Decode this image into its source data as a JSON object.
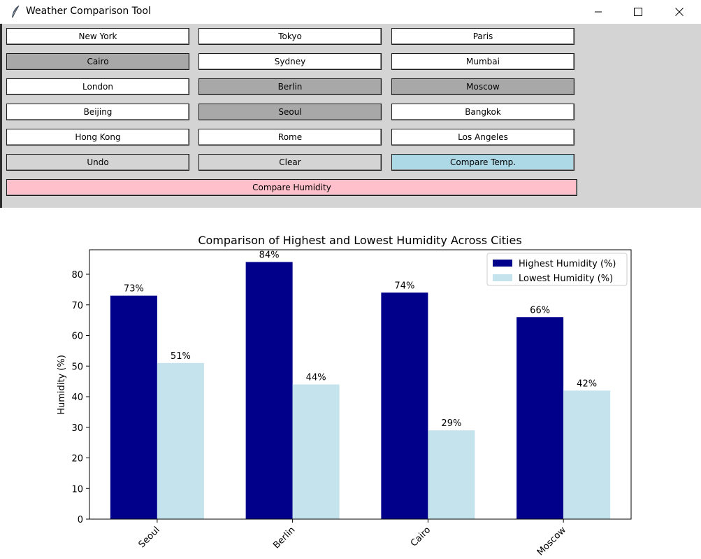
{
  "window": {
    "title": "Weather Comparison Tool",
    "minimize_icon": "minimize-icon",
    "maximize_icon": "maximize-icon",
    "close_icon": "close-icon"
  },
  "buttons": {
    "new_york": "New York",
    "tokyo": "Tokyo",
    "paris": "Paris",
    "cairo": "Cairo",
    "sydney": "Sydney",
    "mumbai": "Mumbai",
    "london": "London",
    "berlin": "Berlin",
    "moscow": "Moscow",
    "beijing": "Beijing",
    "seoul": "Seoul",
    "bangkok": "Bangkok",
    "hong_kong": "Hong Kong",
    "rome": "Rome",
    "los_angeles": "Los Angeles",
    "undo": "Undo",
    "clear": "Clear",
    "compare_temp": "Compare Temp.",
    "compare_humidity": "Compare Humidity"
  },
  "colors": {
    "selected_button": "#a8a8a8",
    "unselected_button": "#ffffff",
    "action_button": "#d4d4d4",
    "compare_temp_button": "#add8e6",
    "compare_humidity_button": "#ffc0cb",
    "highest_bar": "#00008b",
    "lowest_bar": "#c5e3ec"
  },
  "chart_data": {
    "type": "bar",
    "title": "Comparison of Highest and Lowest Humidity Across Cities",
    "xlabel": "",
    "ylabel": "Humidity (%)",
    "categories": [
      "Seoul",
      "Berlin",
      "Cairo",
      "Moscow"
    ],
    "series": [
      {
        "name": "Highest Humidity (%)",
        "values": [
          73,
          84,
          74,
          66
        ],
        "color": "#00008b"
      },
      {
        "name": "Lowest Humidity (%)",
        "values": [
          51,
          44,
          29,
          42
        ],
        "color": "#c5e3ec"
      }
    ],
    "ylim": [
      0,
      88
    ],
    "yticks": [
      0,
      10,
      20,
      30,
      40,
      50,
      60,
      70,
      80
    ],
    "data_label_suffix": "%",
    "legend_position": "top-right",
    "grid": false,
    "xtick_rotation": -45
  }
}
